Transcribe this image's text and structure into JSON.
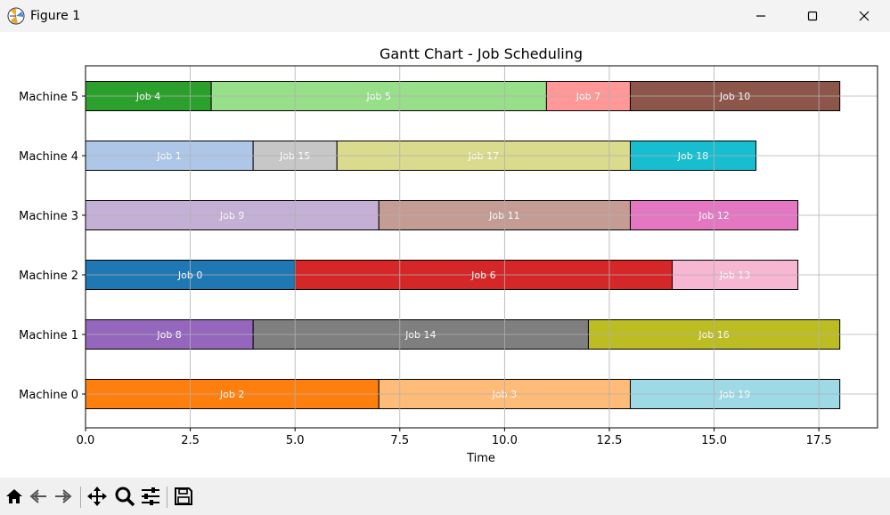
{
  "window": {
    "title": "Figure 1"
  },
  "toolbar": {
    "buttons": [
      {
        "name": "home-button",
        "icon": "home-icon"
      },
      {
        "name": "back-button",
        "icon": "back-arrow-icon"
      },
      {
        "name": "forward-button",
        "icon": "forward-arrow-icon"
      },
      {
        "name": "pan-button",
        "icon": "move-arrows-icon"
      },
      {
        "name": "zoom-button",
        "icon": "magnifier-icon"
      },
      {
        "name": "configure-subplots-button",
        "icon": "sliders-icon"
      },
      {
        "name": "save-button",
        "icon": "floppy-disk-icon"
      }
    ]
  },
  "chart_data": {
    "type": "bar",
    "orientation": "horizontal",
    "title": "Gantt Chart - Job Scheduling",
    "xlabel": "Time",
    "ylabel": "",
    "xlim": [
      0,
      18.9
    ],
    "xticks": [
      "0.0",
      "2.5",
      "5.0",
      "7.5",
      "10.0",
      "12.5",
      "15.0",
      "17.5"
    ],
    "xtick_values": [
      0,
      2.5,
      5,
      7.5,
      10,
      12.5,
      15,
      17.5
    ],
    "categories": [
      "Machine 0",
      "Machine 1",
      "Machine 2",
      "Machine 3",
      "Machine 4",
      "Machine 5"
    ],
    "grid": true,
    "tasks": [
      {
        "machine": 5,
        "label": "Job 4",
        "start": 0,
        "end": 3,
        "color": "#2ca02c"
      },
      {
        "machine": 5,
        "label": "Job 5",
        "start": 3,
        "end": 11,
        "color": "#98df8a"
      },
      {
        "machine": 5,
        "label": "Job 7",
        "start": 11,
        "end": 13,
        "color": "#ff9896"
      },
      {
        "machine": 5,
        "label": "Job 10",
        "start": 13,
        "end": 18,
        "color": "#8c564b"
      },
      {
        "machine": 4,
        "label": "Job 1",
        "start": 0,
        "end": 4,
        "color": "#aec7e8"
      },
      {
        "machine": 4,
        "label": "Job 15",
        "start": 4,
        "end": 6,
        "color": "#c7c7c7"
      },
      {
        "machine": 4,
        "label": "Job 17",
        "start": 6,
        "end": 13,
        "color": "#dbdb8d"
      },
      {
        "machine": 4,
        "label": "Job 18",
        "start": 13,
        "end": 16,
        "color": "#17becf"
      },
      {
        "machine": 3,
        "label": "Job 9",
        "start": 0,
        "end": 7,
        "color": "#c5b0d5"
      },
      {
        "machine": 3,
        "label": "Job 11",
        "start": 7,
        "end": 13,
        "color": "#c49c94"
      },
      {
        "machine": 3,
        "label": "Job 12",
        "start": 13,
        "end": 17,
        "color": "#e377c2"
      },
      {
        "machine": 2,
        "label": "Job 0",
        "start": 0,
        "end": 5,
        "color": "#1f77b4"
      },
      {
        "machine": 2,
        "label": "Job 6",
        "start": 5,
        "end": 14,
        "color": "#d62728"
      },
      {
        "machine": 2,
        "label": "Job 13",
        "start": 14,
        "end": 17,
        "color": "#f7b6d2"
      },
      {
        "machine": 1,
        "label": "Job 8",
        "start": 0,
        "end": 4,
        "color": "#9467bd"
      },
      {
        "machine": 1,
        "label": "Job 14",
        "start": 4,
        "end": 12,
        "color": "#7f7f7f"
      },
      {
        "machine": 1,
        "label": "Job 16",
        "start": 12,
        "end": 18,
        "color": "#bcbd22"
      },
      {
        "machine": 0,
        "label": "Job 2",
        "start": 0,
        "end": 7,
        "color": "#ff7f0e"
      },
      {
        "machine": 0,
        "label": "Job 3",
        "start": 7,
        "end": 13,
        "color": "#ffbb78"
      },
      {
        "machine": 0,
        "label": "Job 19",
        "start": 13,
        "end": 18,
        "color": "#9edae5"
      }
    ]
  }
}
